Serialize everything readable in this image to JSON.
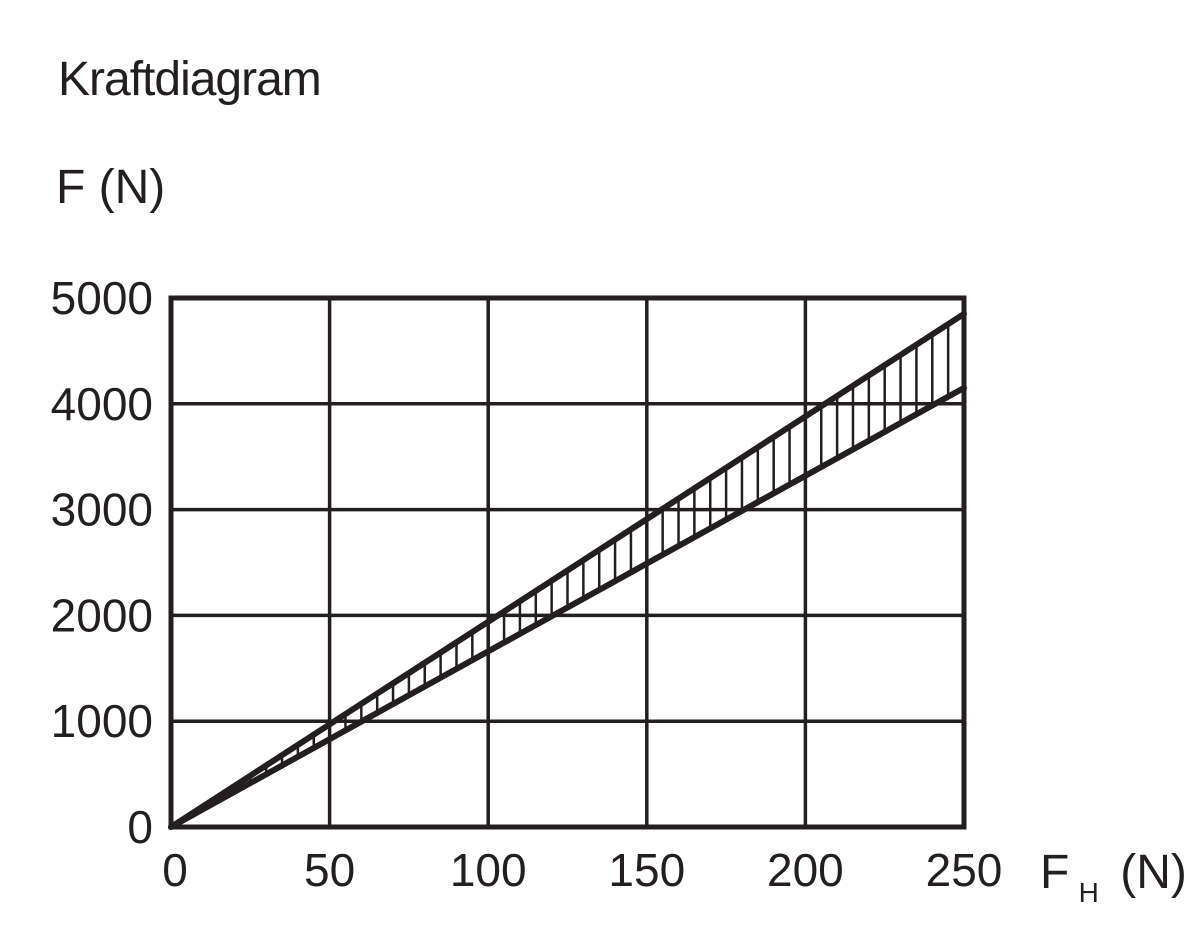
{
  "chart_data": {
    "type": "line",
    "title": "Kraftdiagram",
    "ylabel": "F (N)",
    "xlabel": {
      "main": "F",
      "sub": "H",
      "unit": "(N)"
    },
    "x_ticks": [
      "0",
      "50",
      "100",
      "150",
      "200",
      "250"
    ],
    "y_ticks": [
      "0",
      "1000",
      "2000",
      "3000",
      "4000",
      "5000"
    ],
    "xlim": [
      0,
      250
    ],
    "ylim": [
      0,
      5000
    ],
    "grid": true,
    "series": [
      {
        "x": [
          0,
          250
        ],
        "y": [
          0,
          4850
        ]
      },
      {
        "x": [
          0,
          250
        ],
        "y": [
          0,
          4150
        ]
      }
    ],
    "shaded_band": {
      "between": [
        0,
        1
      ],
      "pattern": "vertical-hatch"
    }
  }
}
